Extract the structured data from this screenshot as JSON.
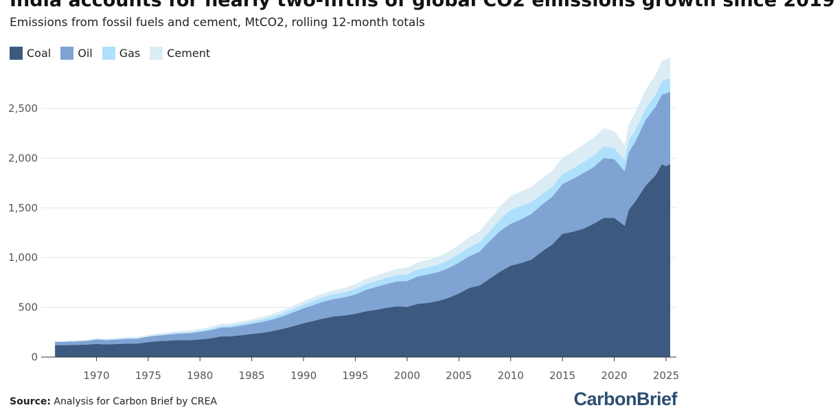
{
  "chart_data": {
    "type": "area",
    "stacked": true,
    "title": "India accounts for nearly two-fifths of global CO2 emissions growth since 2019",
    "subtitle": "Emissions from fossil fuels and cement, MtCO2, rolling 12-month totals",
    "source_label": "Source:",
    "source_text": "Analysis for Carbon Brief by CREA",
    "brand": "CarbonBrief",
    "xlim": [
      1965,
      2026
    ],
    "ylim": [
      0,
      2900
    ],
    "x_ticks": [
      1970,
      1975,
      1980,
      1985,
      1990,
      1995,
      2000,
      2005,
      2010,
      2015,
      2020,
      2025
    ],
    "y_ticks": [
      0,
      500,
      1000,
      1500,
      2000,
      2500
    ],
    "y_tick_labels": [
      "0",
      "500",
      "1,000",
      "1,500",
      "2,000",
      "2,500"
    ],
    "grid": true,
    "legend_position": "top-left",
    "x": [
      1966,
      1967,
      1968,
      1969,
      1970,
      1971,
      1972,
      1973,
      1974,
      1975,
      1976,
      1977,
      1978,
      1979,
      1980,
      1981,
      1982,
      1983,
      1984,
      1985,
      1986,
      1987,
      1988,
      1989,
      1990,
      1991,
      1992,
      1993,
      1994,
      1995,
      1996,
      1997,
      1998,
      1999,
      2000,
      2001,
      2002,
      2003,
      2004,
      2005,
      2006,
      2007,
      2008,
      2009,
      2010,
      2011,
      2012,
      2013,
      2014,
      2015,
      2016,
      2017,
      2018,
      2019,
      2020,
      2021,
      2021.4,
      2022,
      2023,
      2024,
      2024.6,
      2025,
      2025.4
    ],
    "series": [
      {
        "name": "Coal",
        "color": "#3c5a80",
        "values": [
          120,
          120,
          122,
          125,
          132,
          128,
          132,
          135,
          136,
          150,
          160,
          165,
          172,
          170,
          178,
          188,
          208,
          210,
          220,
          232,
          243,
          262,
          285,
          310,
          340,
          365,
          390,
          410,
          420,
          435,
          460,
          475,
          495,
          510,
          505,
          535,
          545,
          565,
          595,
          640,
          695,
          720,
          790,
          860,
          920,
          945,
          980,
          1060,
          1130,
          1240,
          1260,
          1290,
          1340,
          1400,
          1400,
          1320,
          1480,
          1560,
          1720,
          1830,
          1940,
          1920,
          1940
        ]
      },
      {
        "name": "Oil",
        "color": "#7fa3d3",
        "values": [
          32,
          33,
          35,
          37,
          45,
          43,
          45,
          50,
          50,
          55,
          57,
          62,
          65,
          70,
          75,
          82,
          88,
          90,
          96,
          102,
          110,
          116,
          125,
          140,
          150,
          160,
          170,
          175,
          182,
          195,
          215,
          230,
          240,
          250,
          260,
          275,
          285,
          290,
          300,
          310,
          320,
          340,
          380,
          410,
          420,
          440,
          460,
          470,
          480,
          500,
          530,
          560,
          570,
          600,
          590,
          550,
          580,
          600,
          660,
          690,
          700,
          730,
          730
        ]
      },
      {
        "name": "Gas",
        "color": "#aee0fb",
        "values": [
          2,
          2,
          3,
          3,
          3,
          4,
          4,
          5,
          5,
          5,
          6,
          7,
          8,
          10,
          12,
          14,
          16,
          17,
          20,
          22,
          25,
          28,
          32,
          35,
          38,
          42,
          45,
          48,
          50,
          55,
          58,
          60,
          62,
          65,
          68,
          70,
          72,
          75,
          80,
          85,
          90,
          95,
          100,
          120,
          140,
          135,
          120,
          110,
          100,
          100,
          105,
          110,
          115,
          120,
          115,
          110,
          120,
          115,
          115,
          120,
          135,
          145,
          130
        ]
      },
      {
        "name": "Cement",
        "color": "#dcecf5",
        "values": [
          8,
          8,
          9,
          9,
          10,
          10,
          11,
          12,
          13,
          14,
          15,
          16,
          17,
          18,
          19,
          20,
          21,
          22,
          23,
          24,
          26,
          28,
          30,
          32,
          35,
          38,
          40,
          42,
          45,
          48,
          52,
          55,
          58,
          62,
          66,
          70,
          75,
          80,
          85,
          90,
          100,
          110,
          120,
          130,
          140,
          145,
          150,
          155,
          160,
          165,
          170,
          175,
          180,
          185,
          165,
          150,
          160,
          175,
          190,
          200,
          205,
          200,
          210
        ]
      }
    ]
  }
}
